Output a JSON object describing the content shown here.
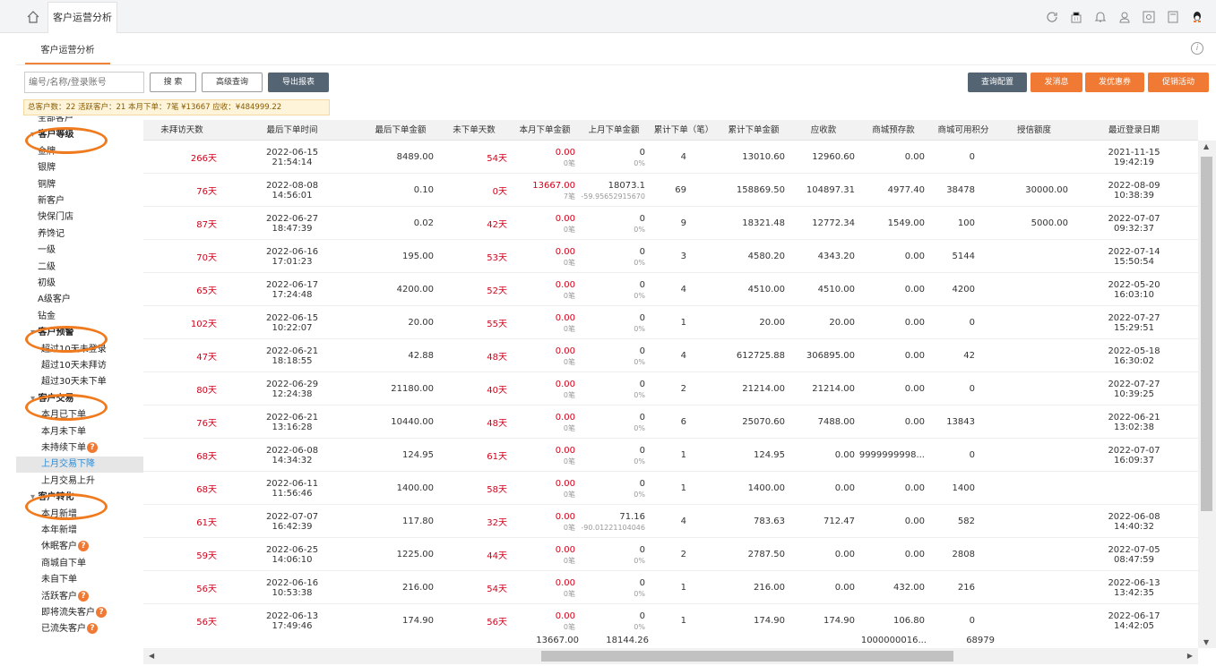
{
  "tabs": {
    "active_label": "客户运营分析"
  },
  "subtab": {
    "label": "客户运营分析"
  },
  "toolbar": {
    "search_placeholder": "编号/名称/登录账号",
    "search": "搜 索",
    "advanced": "高级查询",
    "export": "导出报表",
    "query_config": "查询配置",
    "send_msg": "发消息",
    "send_coupon": "发优惠券",
    "promo": "促销活动"
  },
  "summary": "总客户数：22  活跃客户：21  本月下单：7笔  ¥13667  应收：¥484999.22",
  "sidebar": {
    "items": [
      {
        "label": "全部客户",
        "type": "item"
      },
      {
        "label": "客户等级",
        "type": "head"
      },
      {
        "label": "金牌",
        "type": "item"
      },
      {
        "label": "银牌",
        "type": "item"
      },
      {
        "label": "铜牌",
        "type": "item"
      },
      {
        "label": "新客户",
        "type": "item"
      },
      {
        "label": "快保门店",
        "type": "item"
      },
      {
        "label": "养馋记",
        "type": "item"
      },
      {
        "label": "一级",
        "type": "item"
      },
      {
        "label": "二级",
        "type": "item"
      },
      {
        "label": "初级",
        "type": "item"
      },
      {
        "label": "A级客户",
        "type": "item"
      },
      {
        "label": "钻金",
        "type": "item"
      },
      {
        "label": "客户预警",
        "type": "head"
      },
      {
        "label": "超过10天未登录",
        "type": "sub"
      },
      {
        "label": "超过10天未拜访",
        "type": "sub"
      },
      {
        "label": "超过30天未下单",
        "type": "sub"
      },
      {
        "label": "客户交易",
        "type": "head"
      },
      {
        "label": "本月已下单",
        "type": "sub"
      },
      {
        "label": "本月未下单",
        "type": "sub"
      },
      {
        "label": "未持续下单",
        "type": "sub",
        "q": true
      },
      {
        "label": "上月交易下降",
        "type": "active"
      },
      {
        "label": "上月交易上升",
        "type": "sub"
      },
      {
        "label": "客户转化",
        "type": "head"
      },
      {
        "label": "本月新增",
        "type": "sub"
      },
      {
        "label": "本年新增",
        "type": "sub"
      },
      {
        "label": "休眠客户",
        "type": "sub",
        "q": true
      },
      {
        "label": "商城自下单",
        "type": "sub"
      },
      {
        "label": "未自下单",
        "type": "sub"
      },
      {
        "label": "活跃客户",
        "type": "sub",
        "q": true
      },
      {
        "label": "即将流失客户",
        "type": "sub",
        "q": true
      },
      {
        "label": "已流失客户",
        "type": "sub",
        "q": true
      }
    ]
  },
  "table": {
    "columns": [
      "未拜访天数",
      "最后下单时间",
      "最后下单金额",
      "未下单天数",
      "本月下单金额",
      "上月下单金额",
      "累计下单（笔）",
      "累计下单金额",
      "应收款",
      "商城预存款",
      "商城可用积分",
      "授信额度",
      "最近登录日期"
    ],
    "rows": [
      {
        "visit": "266天",
        "last_date": "2022-06-15",
        "last_time": "21:54:14",
        "last_amt": "8489.00",
        "noorder": "54天",
        "month": "0.00",
        "month_sub": "0笔",
        "prev": "0",
        "prev_sub": "0%",
        "cnt": "4",
        "total": "13010.60",
        "recv": "12960.60",
        "prepay": "0.00",
        "points": "0",
        "credit": "",
        "login_date": "2021-11-15",
        "login_time": "19:42:19"
      },
      {
        "visit": "76天",
        "last_date": "2022-08-08",
        "last_time": "14:56:01",
        "last_amt": "0.10",
        "noorder": "0天",
        "month": "13667.00",
        "month_sub": "7笔",
        "prev": "18073.1",
        "prev_sub": "-59.95652915670",
        "cnt": "69",
        "total": "158869.50",
        "recv": "104897.31",
        "prepay": "4977.40",
        "points": "38478",
        "credit": "30000.00",
        "login_date": "2022-08-09",
        "login_time": "10:38:39"
      },
      {
        "visit": "87天",
        "last_date": "2022-06-27",
        "last_time": "18:47:39",
        "last_amt": "0.02",
        "noorder": "42天",
        "month": "0.00",
        "month_sub": "0笔",
        "prev": "0",
        "prev_sub": "0%",
        "cnt": "9",
        "total": "18321.48",
        "recv": "12772.34",
        "prepay": "1549.00",
        "points": "100",
        "credit": "5000.00",
        "login_date": "2022-07-07",
        "login_time": "09:32:37"
      },
      {
        "visit": "70天",
        "last_date": "2022-06-16",
        "last_time": "17:01:23",
        "last_amt": "195.00",
        "noorder": "53天",
        "month": "0.00",
        "month_sub": "0笔",
        "prev": "0",
        "prev_sub": "0%",
        "cnt": "3",
        "total": "4580.20",
        "recv": "4343.20",
        "prepay": "0.00",
        "points": "5144",
        "credit": "",
        "login_date": "2022-07-14",
        "login_time": "15:50:54"
      },
      {
        "visit": "65天",
        "last_date": "2022-06-17",
        "last_time": "17:24:48",
        "last_amt": "4200.00",
        "noorder": "52天",
        "month": "0.00",
        "month_sub": "0笔",
        "prev": "0",
        "prev_sub": "0%",
        "cnt": "4",
        "total": "4510.00",
        "recv": "4510.00",
        "prepay": "0.00",
        "points": "4200",
        "credit": "",
        "login_date": "2022-05-20",
        "login_time": "16:03:10"
      },
      {
        "visit": "102天",
        "last_date": "2022-06-15",
        "last_time": "10:22:07",
        "last_amt": "20.00",
        "noorder": "55天",
        "month": "0.00",
        "month_sub": "0笔",
        "prev": "0",
        "prev_sub": "0%",
        "cnt": "1",
        "total": "20.00",
        "recv": "20.00",
        "prepay": "0.00",
        "points": "0",
        "credit": "",
        "login_date": "2022-07-27",
        "login_time": "15:29:51"
      },
      {
        "visit": "47天",
        "last_date": "2022-06-21",
        "last_time": "18:18:55",
        "last_amt": "42.88",
        "noorder": "48天",
        "month": "0.00",
        "month_sub": "0笔",
        "prev": "0",
        "prev_sub": "0%",
        "cnt": "4",
        "total": "612725.88",
        "recv": "306895.00",
        "prepay": "0.00",
        "points": "42",
        "credit": "",
        "login_date": "2022-05-18",
        "login_time": "16:30:02"
      },
      {
        "visit": "80天",
        "last_date": "2022-06-29",
        "last_time": "12:24:38",
        "last_amt": "21180.00",
        "noorder": "40天",
        "month": "0.00",
        "month_sub": "0笔",
        "prev": "0",
        "prev_sub": "0%",
        "cnt": "2",
        "total": "21214.00",
        "recv": "21214.00",
        "prepay": "0.00",
        "points": "0",
        "credit": "",
        "login_date": "2022-07-27",
        "login_time": "10:39:25"
      },
      {
        "visit": "76天",
        "last_date": "2022-06-21",
        "last_time": "13:16:28",
        "last_amt": "10440.00",
        "noorder": "48天",
        "month": "0.00",
        "month_sub": "0笔",
        "prev": "0",
        "prev_sub": "0%",
        "cnt": "6",
        "total": "25070.60",
        "recv": "7488.00",
        "prepay": "0.00",
        "points": "13843",
        "credit": "",
        "login_date": "2022-06-21",
        "login_time": "13:02:38"
      },
      {
        "visit": "68天",
        "last_date": "2022-06-08",
        "last_time": "14:34:32",
        "last_amt": "124.95",
        "noorder": "61天",
        "month": "0.00",
        "month_sub": "0笔",
        "prev": "0",
        "prev_sub": "0%",
        "cnt": "1",
        "total": "124.95",
        "recv": "0.00",
        "prepay": "9999999998...",
        "points": "0",
        "credit": "",
        "login_date": "2022-07-07",
        "login_time": "16:09:37"
      },
      {
        "visit": "68天",
        "last_date": "2022-06-11",
        "last_time": "11:56:46",
        "last_amt": "1400.00",
        "noorder": "58天",
        "month": "0.00",
        "month_sub": "0笔",
        "prev": "0",
        "prev_sub": "0%",
        "cnt": "1",
        "total": "1400.00",
        "recv": "0.00",
        "prepay": "0.00",
        "points": "1400",
        "credit": "",
        "login_date": "",
        "login_time": ""
      },
      {
        "visit": "61天",
        "last_date": "2022-07-07",
        "last_time": "16:42:39",
        "last_amt": "117.80",
        "noorder": "32天",
        "month": "0.00",
        "month_sub": "0笔",
        "prev": "71.16",
        "prev_sub": "-90.01221104046",
        "cnt": "4",
        "total": "783.63",
        "recv": "712.47",
        "prepay": "0.00",
        "points": "582",
        "credit": "",
        "login_date": "2022-06-08",
        "login_time": "14:40:32"
      },
      {
        "visit": "59天",
        "last_date": "2022-06-25",
        "last_time": "14:06:10",
        "last_amt": "1225.00",
        "noorder": "44天",
        "month": "0.00",
        "month_sub": "0笔",
        "prev": "0",
        "prev_sub": "0%",
        "cnt": "2",
        "total": "2787.50",
        "recv": "0.00",
        "prepay": "0.00",
        "points": "2808",
        "credit": "",
        "login_date": "2022-07-05",
        "login_time": "08:47:59"
      },
      {
        "visit": "56天",
        "last_date": "2022-06-16",
        "last_time": "10:53:38",
        "last_amt": "216.00",
        "noorder": "54天",
        "month": "0.00",
        "month_sub": "0笔",
        "prev": "0",
        "prev_sub": "0%",
        "cnt": "1",
        "total": "216.00",
        "recv": "0.00",
        "prepay": "432.00",
        "points": "216",
        "credit": "",
        "login_date": "2022-06-13",
        "login_time": "13:42:35"
      },
      {
        "visit": "56天",
        "last_date": "2022-06-13",
        "last_time": "17:49:46",
        "last_amt": "174.90",
        "noorder": "56天",
        "month": "0.00",
        "month_sub": "0笔",
        "prev": "0",
        "prev_sub": "0%",
        "cnt": "1",
        "total": "174.90",
        "recv": "174.90",
        "prepay": "106.80",
        "points": "0",
        "credit": "",
        "login_date": "2022-06-17",
        "login_time": "14:42:05"
      }
    ],
    "footer": {
      "month": "13667.00",
      "prev": "18144.26",
      "prepay": "1000000016...",
      "points": "68979"
    }
  }
}
